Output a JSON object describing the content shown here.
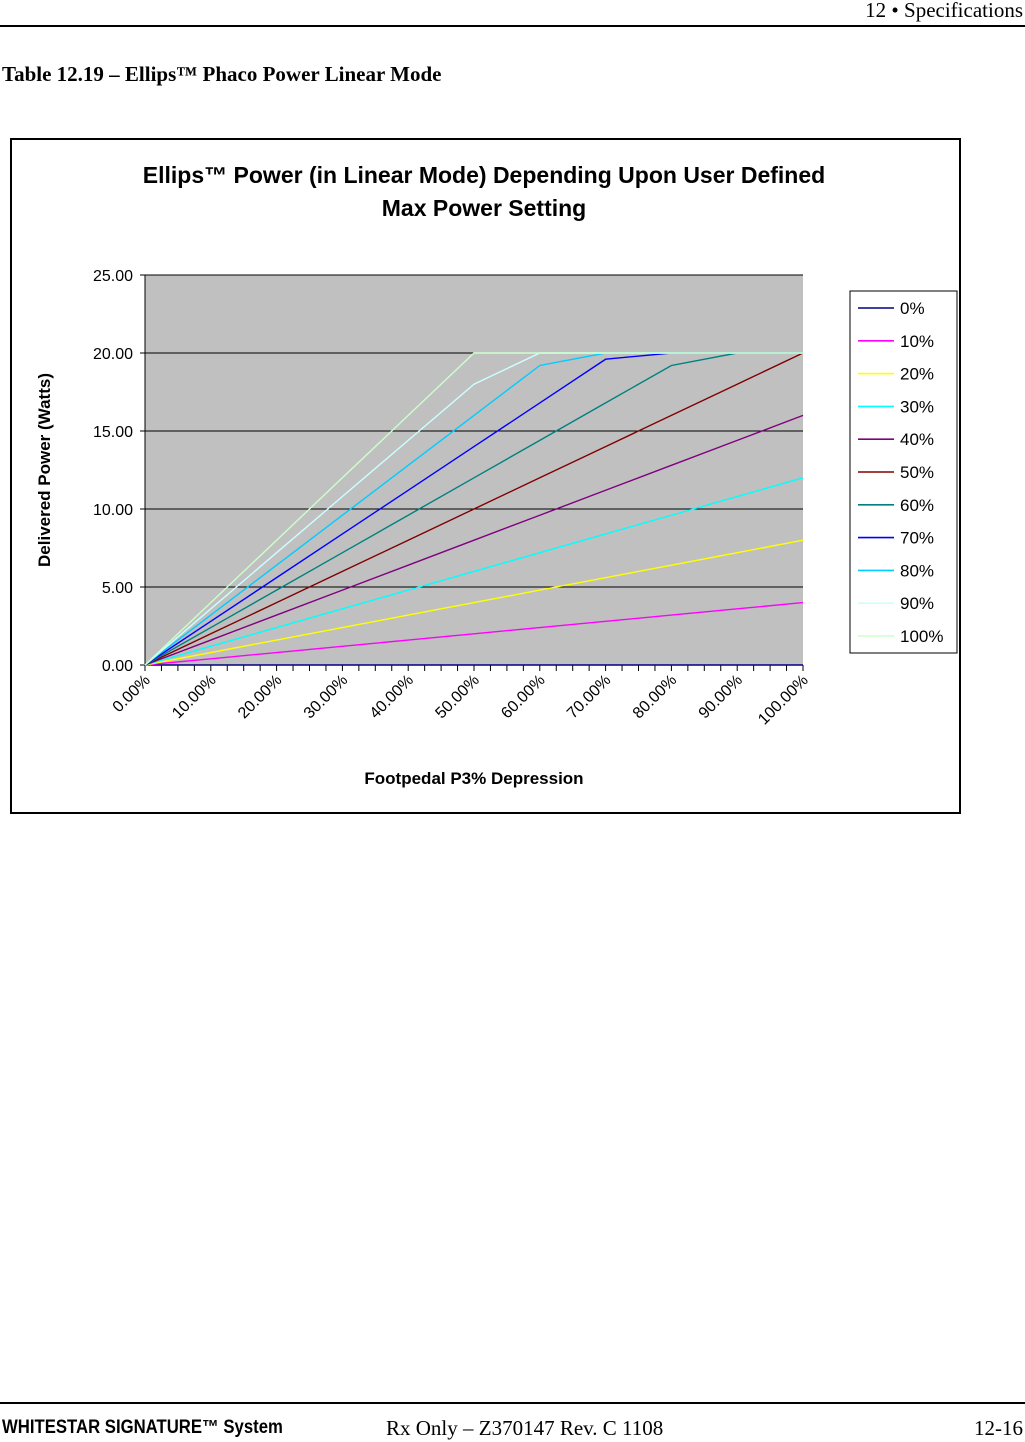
{
  "header": {
    "text": "12  • Specifications"
  },
  "table_title": "Table 12.19 – Ellips™ Phaco Power Linear Mode",
  "footer": {
    "product": "WHITESTAR SIGNATURE™ System",
    "docinfo": "Rx Only – Z370147 Rev. C 1108",
    "page": "12-16"
  },
  "chart_data": {
    "type": "line",
    "title_lines": [
      "Ellips™ Power (in Linear Mode) Depending Upon User Defined",
      "Max Power Setting"
    ],
    "xlabel": "Footpedal P3% Depression",
    "ylabel": "Delivered Power (Watts)",
    "x_tick_labels": [
      "0.00%",
      "10.00%",
      "20.00%",
      "30.00%",
      "40.00%",
      "50.00%",
      "60.00%",
      "70.00%",
      "80.00%",
      "90.00%",
      "100.00%"
    ],
    "y_tick_labels": [
      "0.00",
      "5.00",
      "10.00",
      "15.00",
      "20.00",
      "25.00"
    ],
    "xlim": [
      0,
      100
    ],
    "ylim": [
      0,
      25
    ],
    "grid": "horizontal",
    "plot_background": "#c0c0c0",
    "legend_position": "right",
    "x": [
      0,
      10,
      20,
      30,
      40,
      50,
      60,
      70,
      80,
      90,
      100
    ],
    "series": [
      {
        "name": "0%",
        "color": "#000080",
        "values": [
          0,
          0,
          0,
          0,
          0,
          0,
          0,
          0,
          0,
          0,
          0
        ]
      },
      {
        "name": "10%",
        "color": "#ff00ff",
        "values": [
          0,
          0.4,
          0.8,
          1.2,
          1.6,
          2.0,
          2.4,
          2.8,
          3.2,
          3.6,
          4.0
        ]
      },
      {
        "name": "20%",
        "color": "#ffff00",
        "values": [
          0,
          0.8,
          1.6,
          2.4,
          3.2,
          4.0,
          4.8,
          5.6,
          6.4,
          7.2,
          8.0
        ]
      },
      {
        "name": "30%",
        "color": "#00ffff",
        "values": [
          0,
          1.2,
          2.4,
          3.6,
          4.8,
          6.0,
          7.2,
          8.4,
          9.6,
          10.8,
          12.0
        ]
      },
      {
        "name": "40%",
        "color": "#800080",
        "values": [
          0,
          1.6,
          3.2,
          4.8,
          6.4,
          8.0,
          9.6,
          11.2,
          12.8,
          14.4,
          16.0
        ]
      },
      {
        "name": "50%",
        "color": "#800000",
        "values": [
          0,
          2.0,
          4.0,
          6.0,
          8.0,
          10.0,
          12.0,
          14.0,
          16.0,
          18.0,
          20.0
        ]
      },
      {
        "name": "60%",
        "color": "#008080",
        "values": [
          0,
          2.4,
          4.8,
          7.2,
          9.6,
          12.0,
          14.4,
          16.8,
          19.2,
          20.0,
          20.0
        ]
      },
      {
        "name": "70%",
        "color": "#0000ff",
        "values": [
          0,
          2.8,
          5.6,
          8.4,
          11.2,
          14.0,
          16.8,
          19.6,
          20.0,
          20.0,
          20.0
        ]
      },
      {
        "name": "80%",
        "color": "#00ccff",
        "values": [
          0,
          3.2,
          6.4,
          9.6,
          12.8,
          16.0,
          19.2,
          20.0,
          20.0,
          20.0,
          20.0
        ]
      },
      {
        "name": "90%",
        "color": "#ccffff",
        "values": [
          0,
          3.6,
          7.2,
          10.8,
          14.4,
          18.0,
          20.0,
          20.0,
          20.0,
          20.0,
          20.0
        ]
      },
      {
        "name": "100%",
        "color": "#ccffcc",
        "values": [
          0,
          4.0,
          8.0,
          12.0,
          16.0,
          20.0,
          20.0,
          20.0,
          20.0,
          20.0,
          20.0
        ]
      }
    ]
  }
}
